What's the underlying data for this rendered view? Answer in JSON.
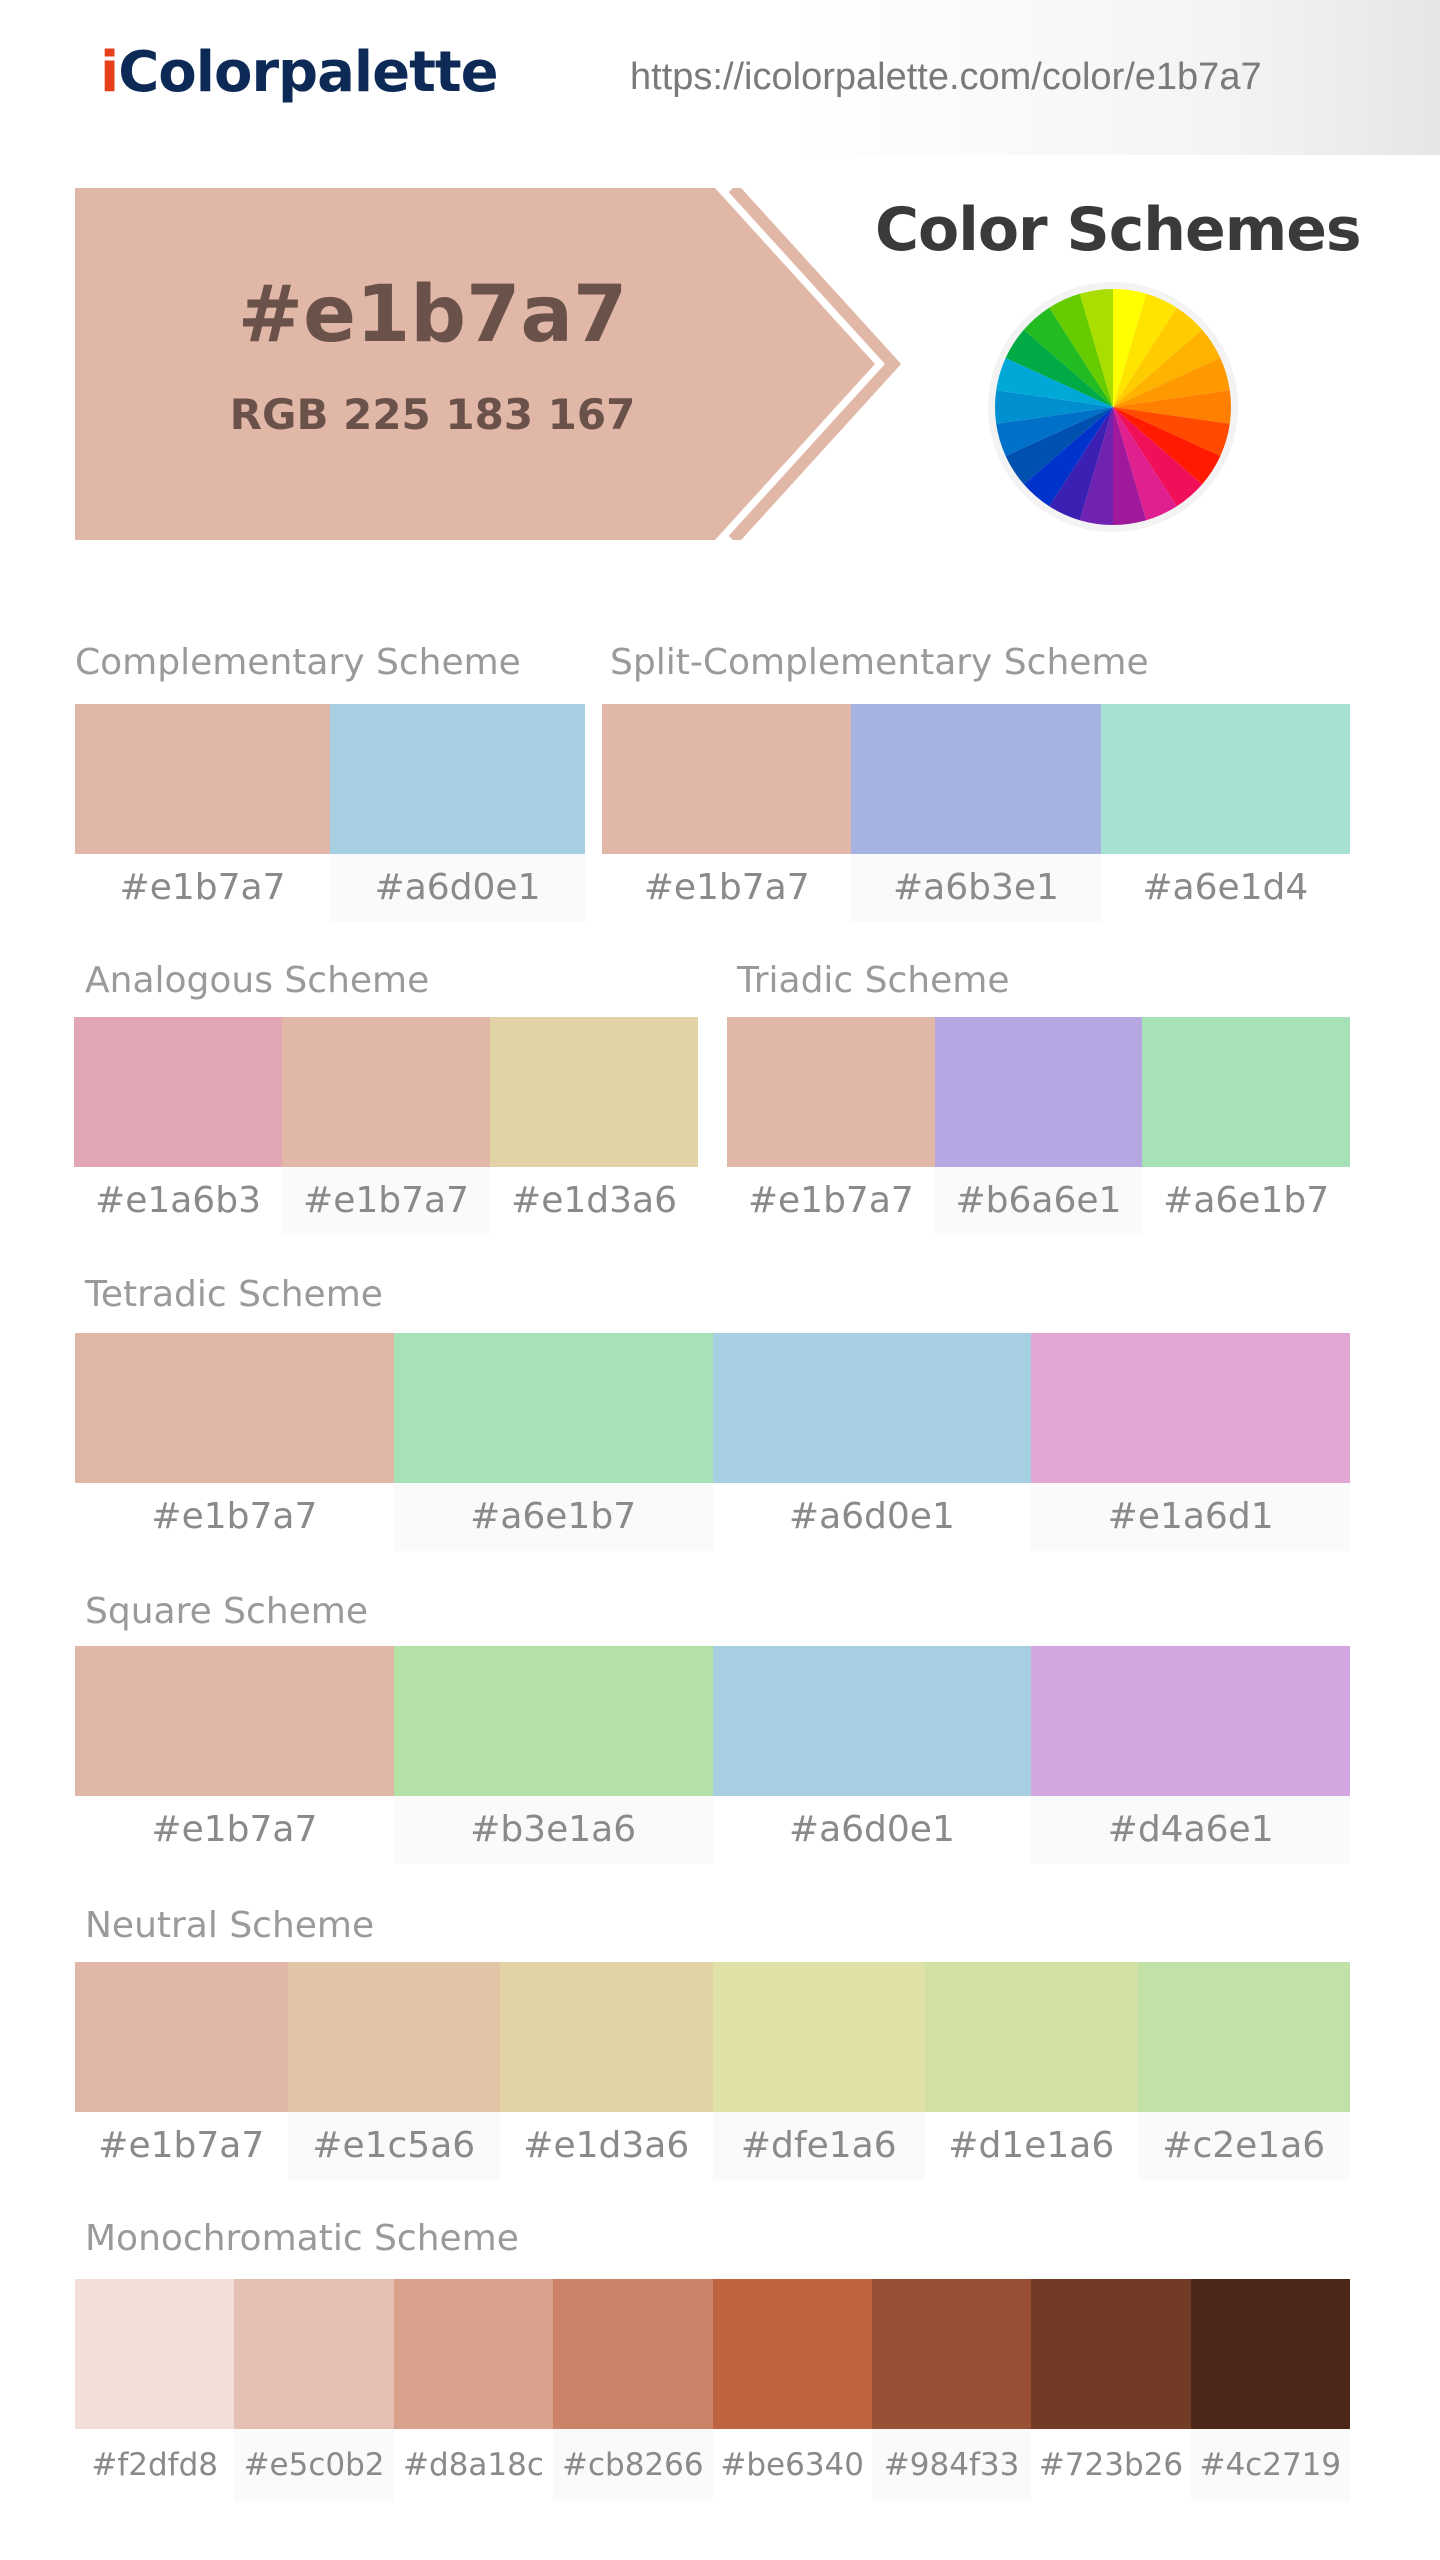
{
  "header": {
    "logo_i": "i",
    "logo_rest": "Colorpalette",
    "url": "https://icolorpalette.com/color/e1b7a7"
  },
  "hero": {
    "hex": "#e1b7a7",
    "rgb": "RGB 225 183 167",
    "color": "#e1b7a7",
    "color_schemes_title": "Color Schemes"
  },
  "color_wheel": {
    "colors": [
      "#ffff00",
      "#ffe400",
      "#ffcc00",
      "#ffb300",
      "#ff9900",
      "#ff7f00",
      "#ff4a00",
      "#ff1a00",
      "#f0105a",
      "#e0208e",
      "#a0199b",
      "#7023b0",
      "#3c20b4",
      "#0033cc",
      "#0050b0",
      "#0070c8",
      "#0090d0",
      "#00a8d8",
      "#00aa44",
      "#22bb22",
      "#66cc00",
      "#aadd00"
    ]
  },
  "schemes": {
    "complementary": {
      "title": "Complementary Scheme",
      "colors": [
        "#e1b7a7",
        "#a6d0e1"
      ]
    },
    "split_complementary": {
      "title": "Split-Complementary Scheme",
      "colors": [
        "#e1b7a7",
        "#a6b3e1",
        "#a6e1d4"
      ]
    },
    "analogous": {
      "title": "Analogous Scheme",
      "colors": [
        "#e1a6b3",
        "#e1b7a7",
        "#e1d3a6"
      ]
    },
    "triadic": {
      "title": "Triadic Scheme",
      "colors": [
        "#e1b7a7",
        "#b6a6e1",
        "#a6e1b7"
      ]
    },
    "tetradic": {
      "title": "Tetradic Scheme",
      "colors": [
        "#e1b7a7",
        "#a6e1b7",
        "#a6d0e1",
        "#e1a6d1"
      ]
    },
    "square": {
      "title": "Square Scheme",
      "colors": [
        "#e1b7a7",
        "#b3e1a6",
        "#a6d0e1",
        "#d4a6e1"
      ]
    },
    "neutral": {
      "title": "Neutral Scheme",
      "colors": [
        "#e1b7a7",
        "#e1c5a6",
        "#e1d3a6",
        "#dfe1a6",
        "#d1e1a6",
        "#c2e1a6"
      ]
    },
    "monochromatic": {
      "title": "Monochromatic Scheme",
      "colors": [
        "#f2dfd8",
        "#e5c0b2",
        "#d8a18c",
        "#cb8266",
        "#be6340",
        "#984f33",
        "#723b26",
        "#4c2719"
      ]
    }
  }
}
